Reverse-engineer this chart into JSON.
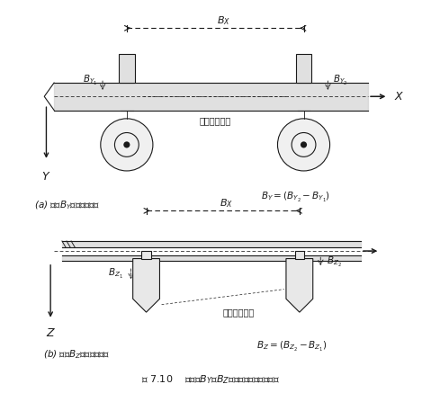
{
  "bg_color": "#ffffff",
  "fig_width": 4.69,
  "fig_height": 4.47,
  "dpi": 100,
  "lc": "#1a1a1a",
  "lw": 0.8,
  "top": {
    "bx_label": "$B_X$",
    "x_label": "$X$",
    "y_label": "$Y$",
    "by1_label": "$B_{Y_1}$",
    "by2_label": "$B_{Y_2}$",
    "by_eq": "$B_Y = (B_{Y_2} - B_{Y_1})$",
    "baseline_label": "模型空中基线",
    "caption": "(a) 表示$B_Y$分量的平面图"
  },
  "bot": {
    "bx_label": "$B_X$",
    "z_label": "$Z$",
    "bz1_label": "$B_{Z_1}$",
    "bz2_label": "$B_{Z_2}$",
    "bz_eq": "$B_Z = (B_{Z_2} - B_{Z_1})$",
    "baseline_label": "模型空中基线",
    "caption": "(b) 表示$B_Z$分量的剖面图"
  },
  "fig_caption": "图 7.10    用基线$B_Y$和$B_Z$分量来确定模型比例尺"
}
